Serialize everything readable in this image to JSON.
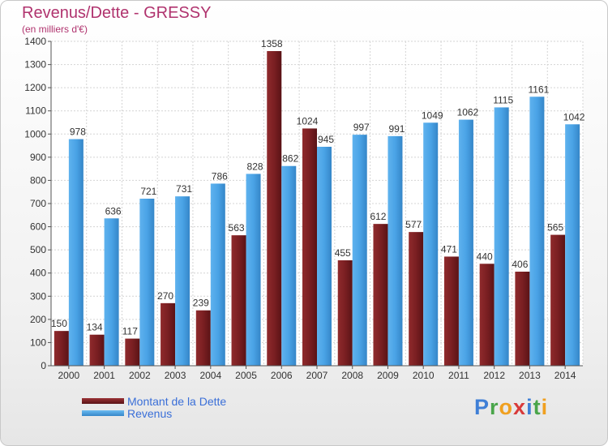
{
  "chart_data": {
    "type": "bar",
    "title": "Revenus/Dette - GRESSY",
    "subtitle": "(en milliers d'€)",
    "categories": [
      "2000",
      "2001",
      "2002",
      "2003",
      "2004",
      "2005",
      "2006",
      "2007",
      "2008",
      "2009",
      "2010",
      "2011",
      "2012",
      "2013",
      "2014"
    ],
    "series": [
      {
        "name": "Montant de la Dette",
        "color": "#7a1f22",
        "values": [
          150,
          134,
          117,
          270,
          239,
          563,
          1358,
          1024,
          455,
          612,
          577,
          471,
          440,
          406,
          565
        ]
      },
      {
        "name": "Revenus",
        "color": "#4aa3e6",
        "values": [
          978,
          636,
          721,
          731,
          786,
          828,
          862,
          945,
          997,
          991,
          1049,
          1062,
          1115,
          1161,
          1042
        ]
      }
    ],
    "ylim": [
      0,
      1400
    ],
    "yticks": [
      0,
      100,
      200,
      300,
      400,
      500,
      600,
      700,
      800,
      900,
      1000,
      1100,
      1200,
      1300,
      1400
    ],
    "grid": true,
    "legend_position": "bottom-left"
  },
  "branding": {
    "logo_letters": [
      "P",
      "r",
      "o",
      "x",
      "i",
      "t",
      "i"
    ],
    "logo_colors": [
      "#3f7fd6",
      "#4aa54a",
      "#f0a020",
      "#d83a3a",
      "#3f7fd6",
      "#4aa54a",
      "#f0a020"
    ]
  }
}
